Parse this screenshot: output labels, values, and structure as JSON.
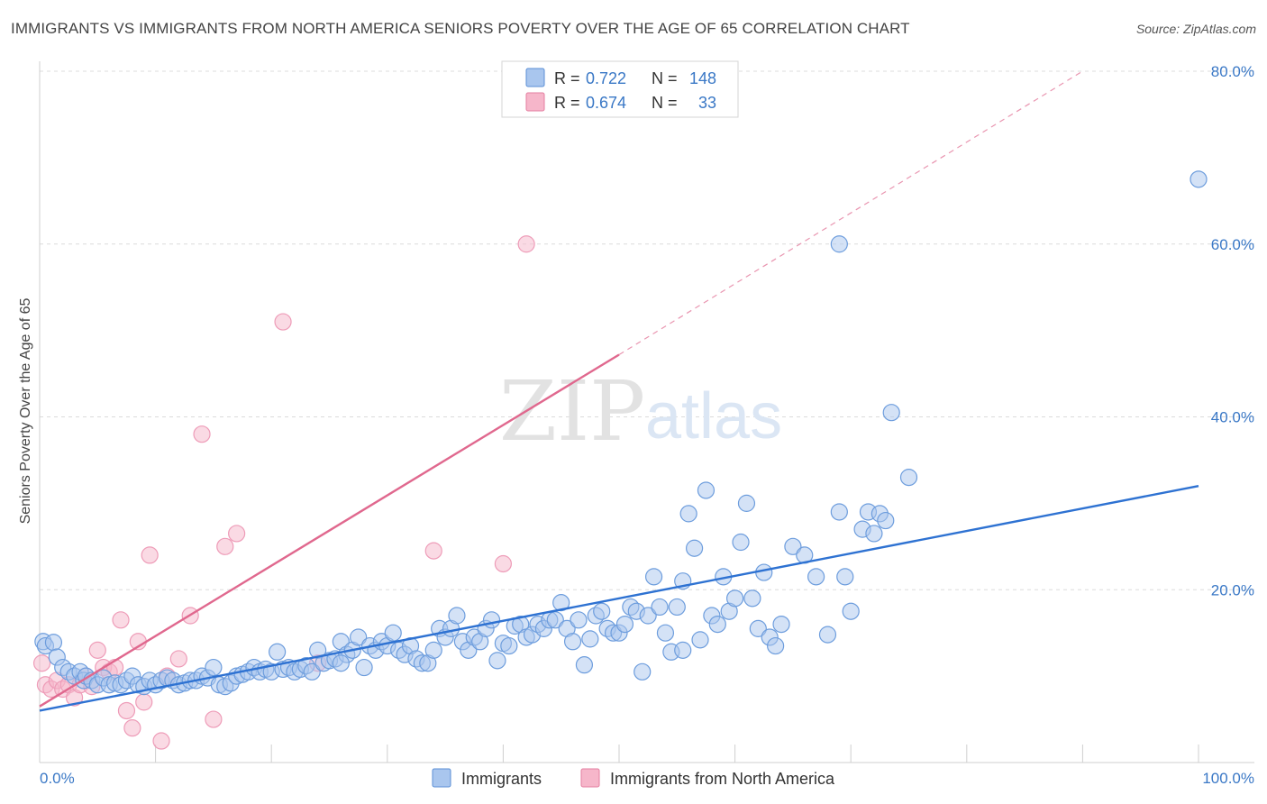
{
  "title": "IMMIGRANTS VS IMMIGRANTS FROM NORTH AMERICA SENIORS POVERTY OVER THE AGE OF 65 CORRELATION CHART",
  "source": "Source: ZipAtlas.com",
  "watermark": {
    "zip": "ZIP",
    "atlas": "atlas"
  },
  "colors": {
    "blue": "#3a78c6",
    "blue_fill": "#a9c6ee",
    "blue_line": "#2e72d2",
    "pink": "#e87ca0",
    "pink_fill": "#f6b6ca",
    "pink_line": "#e0688e",
    "grid": "#dcdcdc"
  },
  "legend": {
    "r_label": "R =",
    "n_label": "N =",
    "rows": [
      {
        "r": "0.722",
        "n": "148"
      },
      {
        "r": "0.674",
        "n": "33"
      }
    ]
  },
  "chart_data": {
    "type": "scatter",
    "title": "IMMIGRANTS VS IMMIGRANTS FROM NORTH AMERICA SENIORS POVERTY OVER THE AGE OF 65 CORRELATION CHART",
    "xlabel": "",
    "ylabel": "Seniors Poverty Over the Age of 65",
    "xlim": [
      0,
      100
    ],
    "ylim": [
      0,
      80
    ],
    "x_tick_labels": [
      "0.0%",
      "100.0%"
    ],
    "y_ticks": [
      20,
      40,
      60,
      80
    ],
    "y_tick_labels": [
      "20.0%",
      "40.0%",
      "60.0%",
      "80.0%"
    ],
    "grid": true,
    "legend_position": "top-center",
    "series": [
      {
        "name": "Immigrants",
        "color": "blue",
        "trend": {
          "x0": 0,
          "y0": 6.0,
          "x1": 100,
          "y1": 32.0,
          "dashed_extension": false
        },
        "points": [
          [
            0.3,
            14.0
          ],
          [
            0.5,
            13.5
          ],
          [
            1.2,
            13.9
          ],
          [
            1.5,
            12.2
          ],
          [
            2.0,
            11.0
          ],
          [
            2.5,
            10.5
          ],
          [
            3.0,
            10.0
          ],
          [
            3.5,
            10.5
          ],
          [
            3.8,
            9.5
          ],
          [
            4.0,
            10.0
          ],
          [
            4.5,
            9.5
          ],
          [
            5.0,
            9.0
          ],
          [
            5.5,
            9.8
          ],
          [
            6.0,
            9.0
          ],
          [
            6.5,
            9.2
          ],
          [
            7.0,
            9.0
          ],
          [
            7.5,
            9.5
          ],
          [
            8.0,
            10.0
          ],
          [
            8.5,
            9.0
          ],
          [
            9.0,
            8.8
          ],
          [
            9.5,
            9.5
          ],
          [
            10.0,
            9.0
          ],
          [
            10.5,
            9.5
          ],
          [
            11.0,
            9.8
          ],
          [
            11.5,
            9.5
          ],
          [
            12.0,
            9.0
          ],
          [
            12.5,
            9.2
          ],
          [
            13.0,
            9.5
          ],
          [
            13.5,
            9.5
          ],
          [
            14.0,
            10.0
          ],
          [
            14.5,
            9.8
          ],
          [
            15.0,
            11.0
          ],
          [
            15.5,
            9.0
          ],
          [
            16.0,
            8.8
          ],
          [
            16.5,
            9.2
          ],
          [
            17.0,
            10.0
          ],
          [
            17.5,
            10.2
          ],
          [
            18.0,
            10.5
          ],
          [
            18.5,
            11.0
          ],
          [
            19.0,
            10.5
          ],
          [
            19.5,
            10.8
          ],
          [
            20.0,
            10.5
          ],
          [
            20.5,
            12.8
          ],
          [
            21.0,
            10.8
          ],
          [
            21.5,
            11.0
          ],
          [
            22.0,
            10.5
          ],
          [
            22.5,
            10.8
          ],
          [
            23.0,
            11.2
          ],
          [
            23.5,
            10.5
          ],
          [
            24.0,
            13.0
          ],
          [
            24.5,
            11.5
          ],
          [
            25.0,
            11.8
          ],
          [
            25.5,
            12.0
          ],
          [
            26.0,
            14.0
          ],
          [
            26.5,
            12.5
          ],
          [
            27.0,
            13.0
          ],
          [
            27.5,
            14.5
          ],
          [
            28.0,
            11.0
          ],
          [
            28.5,
            13.5
          ],
          [
            29.0,
            13.0
          ],
          [
            29.5,
            14.0
          ],
          [
            30.0,
            13.5
          ],
          [
            30.5,
            15.0
          ],
          [
            31.0,
            13.0
          ],
          [
            31.5,
            12.5
          ],
          [
            32.0,
            13.5
          ],
          [
            32.5,
            12.0
          ],
          [
            33.0,
            11.5
          ],
          [
            33.5,
            11.5
          ],
          [
            34.0,
            13.0
          ],
          [
            34.5,
            15.5
          ],
          [
            35.0,
            14.5
          ],
          [
            35.5,
            15.5
          ],
          [
            36.0,
            17.0
          ],
          [
            36.5,
            14.0
          ],
          [
            37.0,
            13.0
          ],
          [
            37.5,
            14.5
          ],
          [
            38.0,
            14.0
          ],
          [
            38.5,
            15.5
          ],
          [
            39.0,
            16.5
          ],
          [
            39.5,
            11.8
          ],
          [
            40.0,
            13.8
          ],
          [
            40.5,
            13.5
          ],
          [
            41.0,
            15.8
          ],
          [
            41.5,
            16.0
          ],
          [
            42.0,
            14.5
          ],
          [
            42.5,
            14.8
          ],
          [
            43.0,
            16.0
          ],
          [
            43.5,
            15.5
          ],
          [
            44.0,
            16.5
          ],
          [
            44.5,
            16.5
          ],
          [
            45.0,
            18.5
          ],
          [
            45.5,
            15.5
          ],
          [
            46.0,
            14.0
          ],
          [
            46.5,
            16.5
          ],
          [
            47.0,
            11.3
          ],
          [
            47.5,
            14.3
          ],
          [
            48.0,
            17.0
          ],
          [
            48.5,
            17.5
          ],
          [
            49.0,
            15.5
          ],
          [
            49.5,
            15.0
          ],
          [
            50.0,
            15.0
          ],
          [
            50.5,
            16.0
          ],
          [
            51.0,
            18.0
          ],
          [
            51.5,
            17.5
          ],
          [
            52.0,
            10.5
          ],
          [
            52.5,
            17.0
          ],
          [
            53.0,
            21.5
          ],
          [
            53.5,
            18.0
          ],
          [
            54.0,
            15.0
          ],
          [
            54.5,
            12.8
          ],
          [
            55.0,
            18.0
          ],
          [
            55.5,
            13.0
          ],
          [
            56.0,
            28.8
          ],
          [
            56.5,
            24.8
          ],
          [
            57.0,
            14.2
          ],
          [
            57.5,
            31.5
          ],
          [
            58.0,
            17.0
          ],
          [
            58.5,
            16.0
          ],
          [
            59.0,
            21.5
          ],
          [
            59.5,
            17.5
          ],
          [
            60.0,
            19.0
          ],
          [
            60.5,
            25.5
          ],
          [
            61.0,
            30.0
          ],
          [
            61.5,
            19.0
          ],
          [
            62.0,
            15.5
          ],
          [
            62.5,
            22.0
          ],
          [
            63.0,
            14.5
          ],
          [
            63.5,
            13.5
          ],
          [
            64.0,
            16.0
          ],
          [
            65.0,
            25.0
          ],
          [
            66.0,
            24.0
          ],
          [
            67.0,
            21.5
          ],
          [
            68.0,
            14.8
          ],
          [
            69.0,
            29.0
          ],
          [
            69.5,
            21.5
          ],
          [
            70.0,
            17.5
          ],
          [
            71.0,
            27.0
          ],
          [
            71.5,
            29.0
          ],
          [
            72.0,
            26.5
          ],
          [
            72.5,
            28.8
          ],
          [
            73.0,
            28.0
          ],
          [
            73.5,
            40.5
          ],
          [
            75.0,
            33.0
          ],
          [
            69.0,
            60.0
          ],
          [
            100.0,
            67.5
          ],
          [
            55.5,
            21.0
          ],
          [
            26.0,
            11.5
          ]
        ]
      },
      {
        "name": "Immigrants from North America",
        "color": "pink",
        "trend": {
          "x0": 0,
          "y0": 6.5,
          "x1": 50,
          "y1": 47.2,
          "dashed_extension": true,
          "dash_x1": 90,
          "dash_y1": 80
        },
        "points": [
          [
            0.2,
            11.5
          ],
          [
            0.5,
            9.0
          ],
          [
            1.0,
            8.5
          ],
          [
            1.5,
            9.5
          ],
          [
            2.0,
            8.5
          ],
          [
            2.5,
            9.0
          ],
          [
            3.0,
            7.5
          ],
          [
            3.5,
            9.0
          ],
          [
            4.0,
            10.0
          ],
          [
            4.5,
            8.8
          ],
          [
            5.0,
            13.0
          ],
          [
            5.5,
            11.0
          ],
          [
            6.0,
            10.5
          ],
          [
            6.5,
            11.0
          ],
          [
            7.0,
            16.5
          ],
          [
            7.5,
            6.0
          ],
          [
            8.0,
            4.0
          ],
          [
            8.5,
            14.0
          ],
          [
            9.0,
            7.0
          ],
          [
            9.5,
            24.0
          ],
          [
            10.5,
            2.5
          ],
          [
            11.0,
            10.0
          ],
          [
            12.0,
            12.0
          ],
          [
            13.0,
            17.0
          ],
          [
            14.0,
            38.0
          ],
          [
            15.0,
            5.0
          ],
          [
            16.0,
            25.0
          ],
          [
            17.0,
            26.5
          ],
          [
            21.0,
            51.0
          ],
          [
            24.0,
            11.5
          ],
          [
            34.0,
            24.5
          ],
          [
            40.0,
            23.0
          ],
          [
            42.0,
            60.0
          ]
        ]
      }
    ]
  },
  "bottom_legend": [
    "Immigrants",
    "Immigrants from North America"
  ]
}
